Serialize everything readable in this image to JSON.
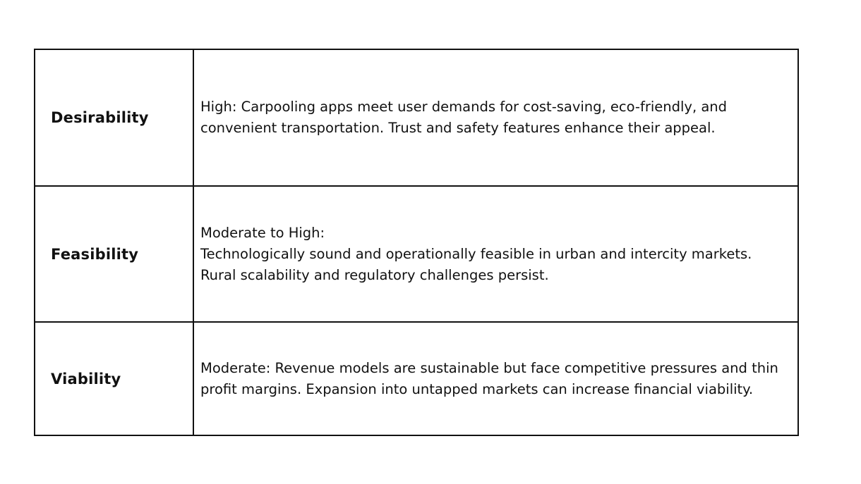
{
  "rows": [
    {
      "label": "Desirability",
      "lines": [
        "High: Carpooling apps meet user demands for cost-saving, eco-friendly, and",
        "convenient transportation. Trust and safety features enhance their appeal."
      ]
    },
    {
      "label": "Feasibility",
      "lines": [
        "Moderate to High:",
        "Technologically sound and operationally feasible in urban and intercity markets.",
        "Rural scalability and regulatory challenges persist."
      ]
    },
    {
      "label": "Viability",
      "lines": [
        "Moderate: Revenue models are sustainable but face competitive pressures and thin",
        "profit margins. Expansion into untapped markets can increase financial viability."
      ]
    }
  ]
}
